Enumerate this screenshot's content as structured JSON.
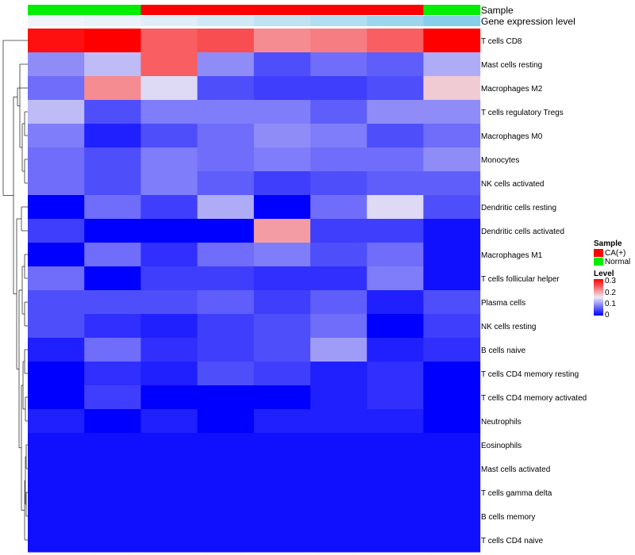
{
  "chart_data": {
    "type": "heatmap",
    "annotation_labels": {
      "sample": "Sample",
      "gene_expression": "Gene expression level"
    },
    "columns": 8,
    "sample_groups": [
      "Normal",
      "Normal",
      "CA(+)",
      "CA(+)",
      "CA(+)",
      "CA(+)",
      "CA(+)",
      "Normal"
    ],
    "gene_expression_level": [
      0.0,
      0.05,
      0.15,
      0.3,
      0.45,
      0.6,
      0.8,
      1.0
    ],
    "rows": [
      "T cells CD8",
      "Mast cells resting",
      "Macrophages M2",
      "T cells regulatory  Tregs",
      "Macrophages M0",
      "Monocytes",
      "NK cells activated",
      "Dendritic cells resting",
      "Dendritic cells activated",
      "Macrophages M1",
      "T cells follicular helper",
      "Plasma cells",
      "NK cells resting",
      "B cells naive",
      "T cells CD4 memory resting",
      "T cells CD4 memory activated",
      "Neutrophils",
      "Eosinophils",
      "Mast cells activated",
      "T cells gamma delta",
      "B cells memory",
      "T cells CD4 naive"
    ],
    "values": [
      [
        0.29,
        0.3,
        0.24,
        0.25,
        0.21,
        0.22,
        0.24,
        0.3
      ],
      [
        0.09,
        0.12,
        0.24,
        0.09,
        0.05,
        0.07,
        0.06,
        0.11
      ],
      [
        0.07,
        0.21,
        0.14,
        0.05,
        0.04,
        0.04,
        0.05,
        0.17
      ],
      [
        0.12,
        0.05,
        0.08,
        0.08,
        0.08,
        0.06,
        0.09,
        0.09
      ],
      [
        0.08,
        0.02,
        0.05,
        0.07,
        0.09,
        0.08,
        0.05,
        0.07
      ],
      [
        0.07,
        0.05,
        0.08,
        0.07,
        0.08,
        0.07,
        0.07,
        0.09
      ],
      [
        0.07,
        0.05,
        0.08,
        0.06,
        0.04,
        0.05,
        0.06,
        0.06
      ],
      [
        0.0,
        0.07,
        0.04,
        0.11,
        0.0,
        0.07,
        0.14,
        0.05
      ],
      [
        0.04,
        0.0,
        0.0,
        0.0,
        0.2,
        0.04,
        0.04,
        0.01
      ],
      [
        0.0,
        0.07,
        0.03,
        0.07,
        0.08,
        0.05,
        0.07,
        0.01
      ],
      [
        0.07,
        0.0,
        0.04,
        0.04,
        0.03,
        0.03,
        0.08,
        0.01
      ],
      [
        0.05,
        0.05,
        0.05,
        0.06,
        0.04,
        0.06,
        0.02,
        0.05
      ],
      [
        0.05,
        0.03,
        0.02,
        0.04,
        0.05,
        0.07,
        0.0,
        0.04
      ],
      [
        0.02,
        0.07,
        0.03,
        0.04,
        0.05,
        0.1,
        0.02,
        0.03
      ],
      [
        0.0,
        0.03,
        0.02,
        0.05,
        0.04,
        0.02,
        0.03,
        0.0
      ],
      [
        0.0,
        0.04,
        0.0,
        0.0,
        0.0,
        0.02,
        0.03,
        0.0
      ],
      [
        0.02,
        0.0,
        0.02,
        0.0,
        0.02,
        0.02,
        0.02,
        0.0
      ],
      [
        0.01,
        0.01,
        0.01,
        0.01,
        0.01,
        0.01,
        0.01,
        0.01
      ],
      [
        0.01,
        0.01,
        0.01,
        0.01,
        0.01,
        0.01,
        0.01,
        0.01
      ],
      [
        0.01,
        0.01,
        0.01,
        0.01,
        0.01,
        0.01,
        0.01,
        0.01
      ],
      [
        0.01,
        0.01,
        0.01,
        0.01,
        0.01,
        0.01,
        0.01,
        0.01
      ],
      [
        0.01,
        0.01,
        0.01,
        0.01,
        0.01,
        0.01,
        0.01,
        0.01
      ]
    ],
    "legend": {
      "sample_title": "Sample",
      "sample_entries": [
        {
          "label": "CA(+)",
          "color": "#ff0000"
        },
        {
          "label": "Normal",
          "color": "#00ee00"
        }
      ],
      "level_title": "Level",
      "level_ticks": [
        "0.3",
        "0.2",
        "0.1",
        "0"
      ],
      "level_range": [
        0,
        0.3
      ],
      "placement": "right"
    },
    "colors": {
      "low": "#0000ff",
      "mid": "#eeeaf4",
      "high": "#ff0000",
      "gene_low": "#eef4fa",
      "gene_high": "#87ceeb"
    }
  }
}
